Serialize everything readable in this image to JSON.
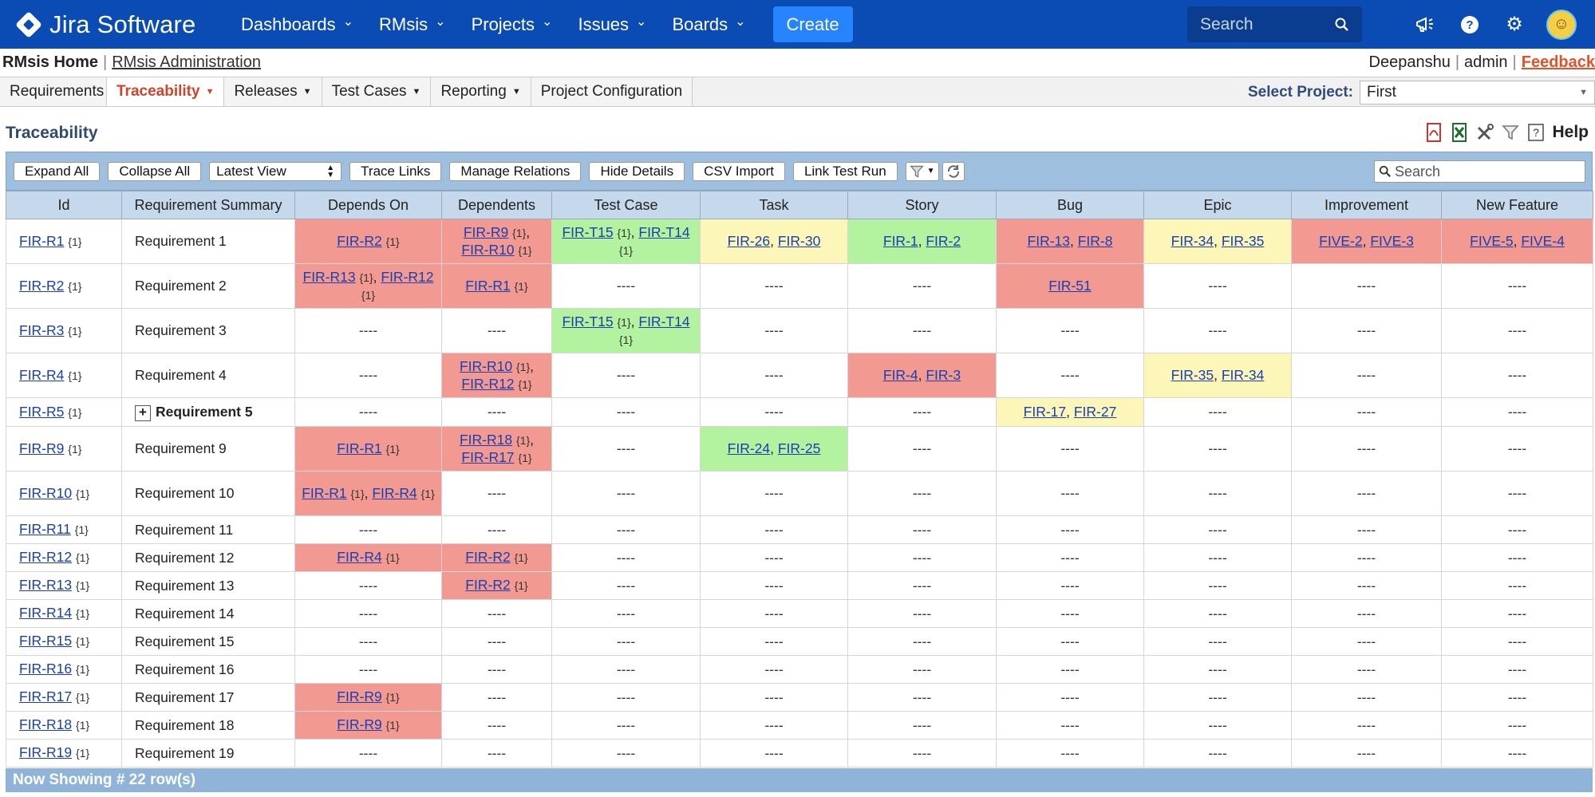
{
  "topbar": {
    "brand": "Jira Software",
    "nav": [
      {
        "label": "Dashboards",
        "name": "nav-dashboards"
      },
      {
        "label": "RMsis",
        "name": "nav-rmsis"
      },
      {
        "label": "Projects",
        "name": "nav-projects"
      },
      {
        "label": "Issues",
        "name": "nav-issues"
      },
      {
        "label": "Boards",
        "name": "nav-boards"
      }
    ],
    "create_label": "Create",
    "search_placeholder": "Search"
  },
  "rmsis": {
    "home_label": "RMsis Home",
    "admin_label": "RMsis Administration",
    "user": "Deepanshu",
    "admin": "admin",
    "feedback": "Feedback"
  },
  "menu": {
    "items": [
      {
        "label": "Requirements",
        "dropdown": false,
        "active": false
      },
      {
        "label": "Traceability",
        "dropdown": true,
        "active": true
      },
      {
        "label": "Releases",
        "dropdown": true,
        "active": false
      },
      {
        "label": "Test Cases",
        "dropdown": true,
        "active": false
      },
      {
        "label": "Reporting",
        "dropdown": true,
        "active": false
      },
      {
        "label": "Project Configuration",
        "dropdown": false,
        "active": false
      }
    ],
    "select_project_label": "Select Project:",
    "selected_project": "First"
  },
  "page": {
    "title": "Traceability",
    "help_label": "Help"
  },
  "toolbar": {
    "expand_all": "Expand All",
    "collapse_all": "Collapse All",
    "view": "Latest View",
    "trace_links": "Trace Links",
    "manage_relations": "Manage Relations",
    "hide_details": "Hide Details",
    "csv_import": "CSV Import",
    "link_test_run": "Link Test Run",
    "search_placeholder": "Search"
  },
  "table": {
    "columns": [
      "Id",
      "Requirement Summary",
      "Depends On",
      "Dependents",
      "Test Case",
      "Task",
      "Story",
      "Bug",
      "Epic",
      "Improvement",
      "New Feature"
    ],
    "rows": [
      {
        "id": "FIR-R1",
        "summary": "Requirement 1",
        "h": "h1",
        "cells": [
          {
            "c": "red",
            "links": [
              {
                "t": "FIR-R2",
                "n": "{1}"
              }
            ]
          },
          {
            "c": "red",
            "links": [
              {
                "t": "FIR-R9",
                "n": "{1}"
              },
              {
                "t": "FIR-R10",
                "n": "{1}"
              }
            ],
            "br": true
          },
          {
            "c": "green",
            "links": [
              {
                "t": "FIR-T15",
                "n": "{1}"
              },
              {
                "t": "FIR-T14",
                "n": "{1}"
              }
            ]
          },
          {
            "c": "yellow",
            "links": [
              {
                "t": "FIR-26"
              },
              {
                "t": "FIR-30"
              }
            ]
          },
          {
            "c": "green",
            "links": [
              {
                "t": "FIR-1"
              },
              {
                "t": "FIR-2"
              }
            ]
          },
          {
            "c": "red",
            "links": [
              {
                "t": "FIR-13"
              },
              {
                "t": "FIR-8"
              }
            ]
          },
          {
            "c": "yellow",
            "links": [
              {
                "t": "FIR-34"
              },
              {
                "t": "FIR-35"
              }
            ]
          },
          {
            "c": "red",
            "links": [
              {
                "t": "FIVE-2"
              },
              {
                "t": "FIVE-3"
              }
            ]
          },
          {
            "c": "red",
            "links": [
              {
                "t": "FIVE-5"
              },
              {
                "t": "FIVE-4"
              }
            ]
          }
        ]
      },
      {
        "id": "FIR-R2",
        "summary": "Requirement 2",
        "h": "h1",
        "cells": [
          {
            "c": "red",
            "links": [
              {
                "t": "FIR-R13",
                "n": "{1}"
              },
              {
                "t": "FIR-R12",
                "n": "{1}"
              }
            ]
          },
          {
            "c": "red",
            "links": [
              {
                "t": "FIR-R1",
                "n": "{1}"
              }
            ]
          },
          {},
          {},
          {},
          {
            "c": "red",
            "links": [
              {
                "t": "FIR-51"
              }
            ]
          },
          {},
          {},
          {}
        ]
      },
      {
        "id": "FIR-R3",
        "summary": "Requirement 3",
        "h": "h1",
        "cells": [
          {},
          {},
          {
            "c": "green",
            "links": [
              {
                "t": "FIR-T15",
                "n": "{1}"
              },
              {
                "t": "FIR-T14",
                "n": "{1}"
              }
            ]
          },
          {},
          {},
          {},
          {},
          {},
          {}
        ]
      },
      {
        "id": "FIR-R4",
        "summary": "Requirement 4",
        "h": "h1",
        "cells": [
          {},
          {
            "c": "red",
            "links": [
              {
                "t": "FIR-R10",
                "n": "{1}"
              },
              {
                "t": "FIR-R12",
                "n": "{1}"
              }
            ],
            "br": true
          },
          {},
          {},
          {
            "c": "red",
            "links": [
              {
                "t": "FIR-4"
              },
              {
                "t": "FIR-3"
              }
            ]
          },
          {},
          {
            "c": "yellow",
            "links": [
              {
                "t": "FIR-35"
              },
              {
                "t": "FIR-34"
              }
            ]
          },
          {},
          {}
        ]
      },
      {
        "id": "FIR-R5",
        "summary": "Requirement 5",
        "bold": true,
        "expand": true,
        "h": "h2",
        "cells": [
          {},
          {},
          {},
          {},
          {},
          {
            "c": "yellow",
            "links": [
              {
                "t": "FIR-17"
              },
              {
                "t": "FIR-27"
              }
            ]
          },
          {},
          {},
          {}
        ]
      },
      {
        "id": "FIR-R9",
        "summary": "Requirement 9",
        "h": "h1",
        "cells": [
          {
            "c": "red",
            "links": [
              {
                "t": "FIR-R1",
                "n": "{1}"
              }
            ]
          },
          {
            "c": "red",
            "links": [
              {
                "t": "FIR-R18",
                "n": "{1}"
              },
              {
                "t": "FIR-R17",
                "n": "{1}"
              }
            ],
            "br": true
          },
          {},
          {
            "c": "green",
            "links": [
              {
                "t": "FIR-24"
              },
              {
                "t": "FIR-25"
              }
            ]
          },
          {},
          {},
          {},
          {},
          {}
        ]
      },
      {
        "id": "FIR-R10",
        "summary": "Requirement 10",
        "h": "h1",
        "cells": [
          {
            "c": "red",
            "links": [
              {
                "t": "FIR-R1",
                "n": "{1}"
              },
              {
                "t": "FIR-R4",
                "n": "{1}"
              }
            ]
          },
          {},
          {},
          {},
          {},
          {},
          {},
          {},
          {}
        ]
      },
      {
        "id": "FIR-R11",
        "summary": "Requirement 11",
        "h": "h3",
        "cells": [
          {},
          {},
          {},
          {},
          {},
          {},
          {},
          {},
          {}
        ]
      },
      {
        "id": "FIR-R12",
        "summary": "Requirement 12",
        "h": "h3",
        "cells": [
          {
            "c": "red",
            "links": [
              {
                "t": "FIR-R4",
                "n": "{1}"
              }
            ]
          },
          {
            "c": "red",
            "links": [
              {
                "t": "FIR-R2",
                "n": "{1}"
              }
            ]
          },
          {},
          {},
          {},
          {},
          {},
          {},
          {}
        ]
      },
      {
        "id": "FIR-R13",
        "summary": "Requirement 13",
        "h": "h3",
        "cells": [
          {},
          {
            "c": "red",
            "links": [
              {
                "t": "FIR-R2",
                "n": "{1}"
              }
            ]
          },
          {},
          {},
          {},
          {},
          {},
          {},
          {}
        ]
      },
      {
        "id": "FIR-R14",
        "summary": "Requirement 14",
        "h": "h3",
        "cells": [
          {},
          {},
          {},
          {},
          {},
          {},
          {},
          {},
          {}
        ]
      },
      {
        "id": "FIR-R15",
        "summary": "Requirement 15",
        "h": "h3",
        "cells": [
          {},
          {},
          {},
          {},
          {},
          {},
          {},
          {},
          {}
        ]
      },
      {
        "id": "FIR-R16",
        "summary": "Requirement 16",
        "h": "h3",
        "cells": [
          {},
          {},
          {},
          {},
          {},
          {},
          {},
          {},
          {}
        ]
      },
      {
        "id": "FIR-R17",
        "summary": "Requirement 17",
        "h": "h3",
        "cells": [
          {
            "c": "red",
            "links": [
              {
                "t": "FIR-R9",
                "n": "{1}"
              }
            ]
          },
          {},
          {},
          {},
          {},
          {},
          {},
          {},
          {}
        ]
      },
      {
        "id": "FIR-R18",
        "summary": "Requirement 18",
        "h": "h3",
        "cells": [
          {
            "c": "red",
            "links": [
              {
                "t": "FIR-R9",
                "n": "{1}"
              }
            ]
          },
          {},
          {},
          {},
          {},
          {},
          {},
          {},
          {}
        ]
      },
      {
        "id": "FIR-R19",
        "summary": "Requirement 19",
        "h": "h3",
        "cells": [
          {},
          {},
          {},
          {},
          {},
          {},
          {},
          {},
          {}
        ]
      }
    ],
    "id_count": "{1}",
    "empty": "----"
  },
  "footer": {
    "text": "Now Showing # 22 row(s)"
  }
}
